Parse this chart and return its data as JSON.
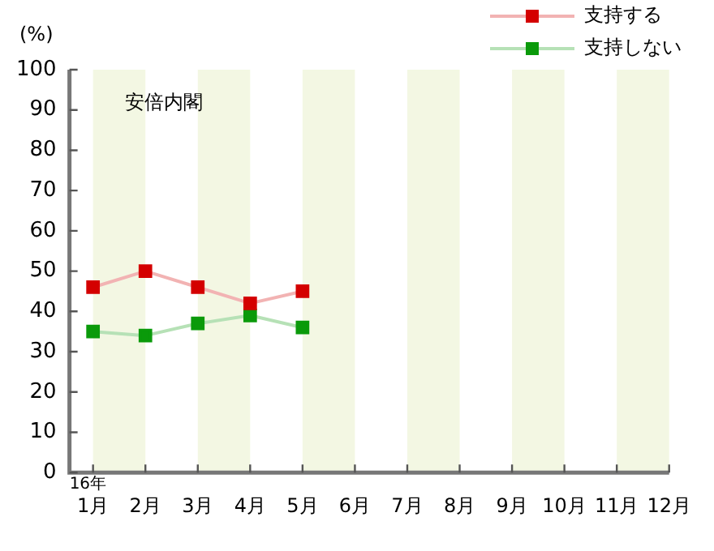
{
  "chart_data": {
    "type": "line",
    "title": "安倍内閣",
    "ylabel": "(%)",
    "x": [
      1,
      2,
      3,
      4,
      5
    ],
    "series": [
      {
        "name": "支持する",
        "color": "#d40000",
        "values": [
          46,
          50,
          46,
          42,
          45
        ]
      },
      {
        "name": "支持しない",
        "color": "#0a9a0a",
        "values": [
          35,
          34,
          37,
          39,
          36
        ]
      }
    ],
    "xlim": [
      0.55,
      12
    ],
    "xticks": [
      {
        "value": 1,
        "label": "1月"
      },
      {
        "value": 2,
        "label": "2月"
      },
      {
        "value": 3,
        "label": "3月"
      },
      {
        "value": 4,
        "label": "4月"
      },
      {
        "value": 5,
        "label": "5月"
      },
      {
        "value": 6,
        "label": "6月"
      },
      {
        "value": 7,
        "label": "7月"
      },
      {
        "value": 8,
        "label": "8月"
      },
      {
        "value": 9,
        "label": "9月"
      },
      {
        "value": 10,
        "label": "10月"
      },
      {
        "value": 11,
        "label": "11月"
      },
      {
        "value": 12,
        "label": "12月"
      }
    ],
    "ylim": [
      0,
      100
    ],
    "yticks": [
      0,
      10,
      20,
      30,
      40,
      50,
      60,
      70,
      80,
      90,
      100
    ],
    "bands": [
      {
        "axis": "x",
        "from": 1,
        "to": 2,
        "color": "#f3f7e3"
      },
      {
        "axis": "x",
        "from": 3,
        "to": 4,
        "color": "#f3f7e3"
      },
      {
        "axis": "x",
        "from": 5,
        "to": 6,
        "color": "#f3f7e3"
      },
      {
        "axis": "x",
        "from": 7,
        "to": 8,
        "color": "#f3f7e3"
      },
      {
        "axis": "x",
        "from": 9,
        "to": 10,
        "color": "#f3f7e3"
      },
      {
        "axis": "x",
        "from": 11,
        "to": 12,
        "color": "#f3f7e3"
      }
    ],
    "annotations": [
      "16年"
    ],
    "grid": false,
    "legend": "top right",
    "marker": "square",
    "line_style": "solid"
  }
}
